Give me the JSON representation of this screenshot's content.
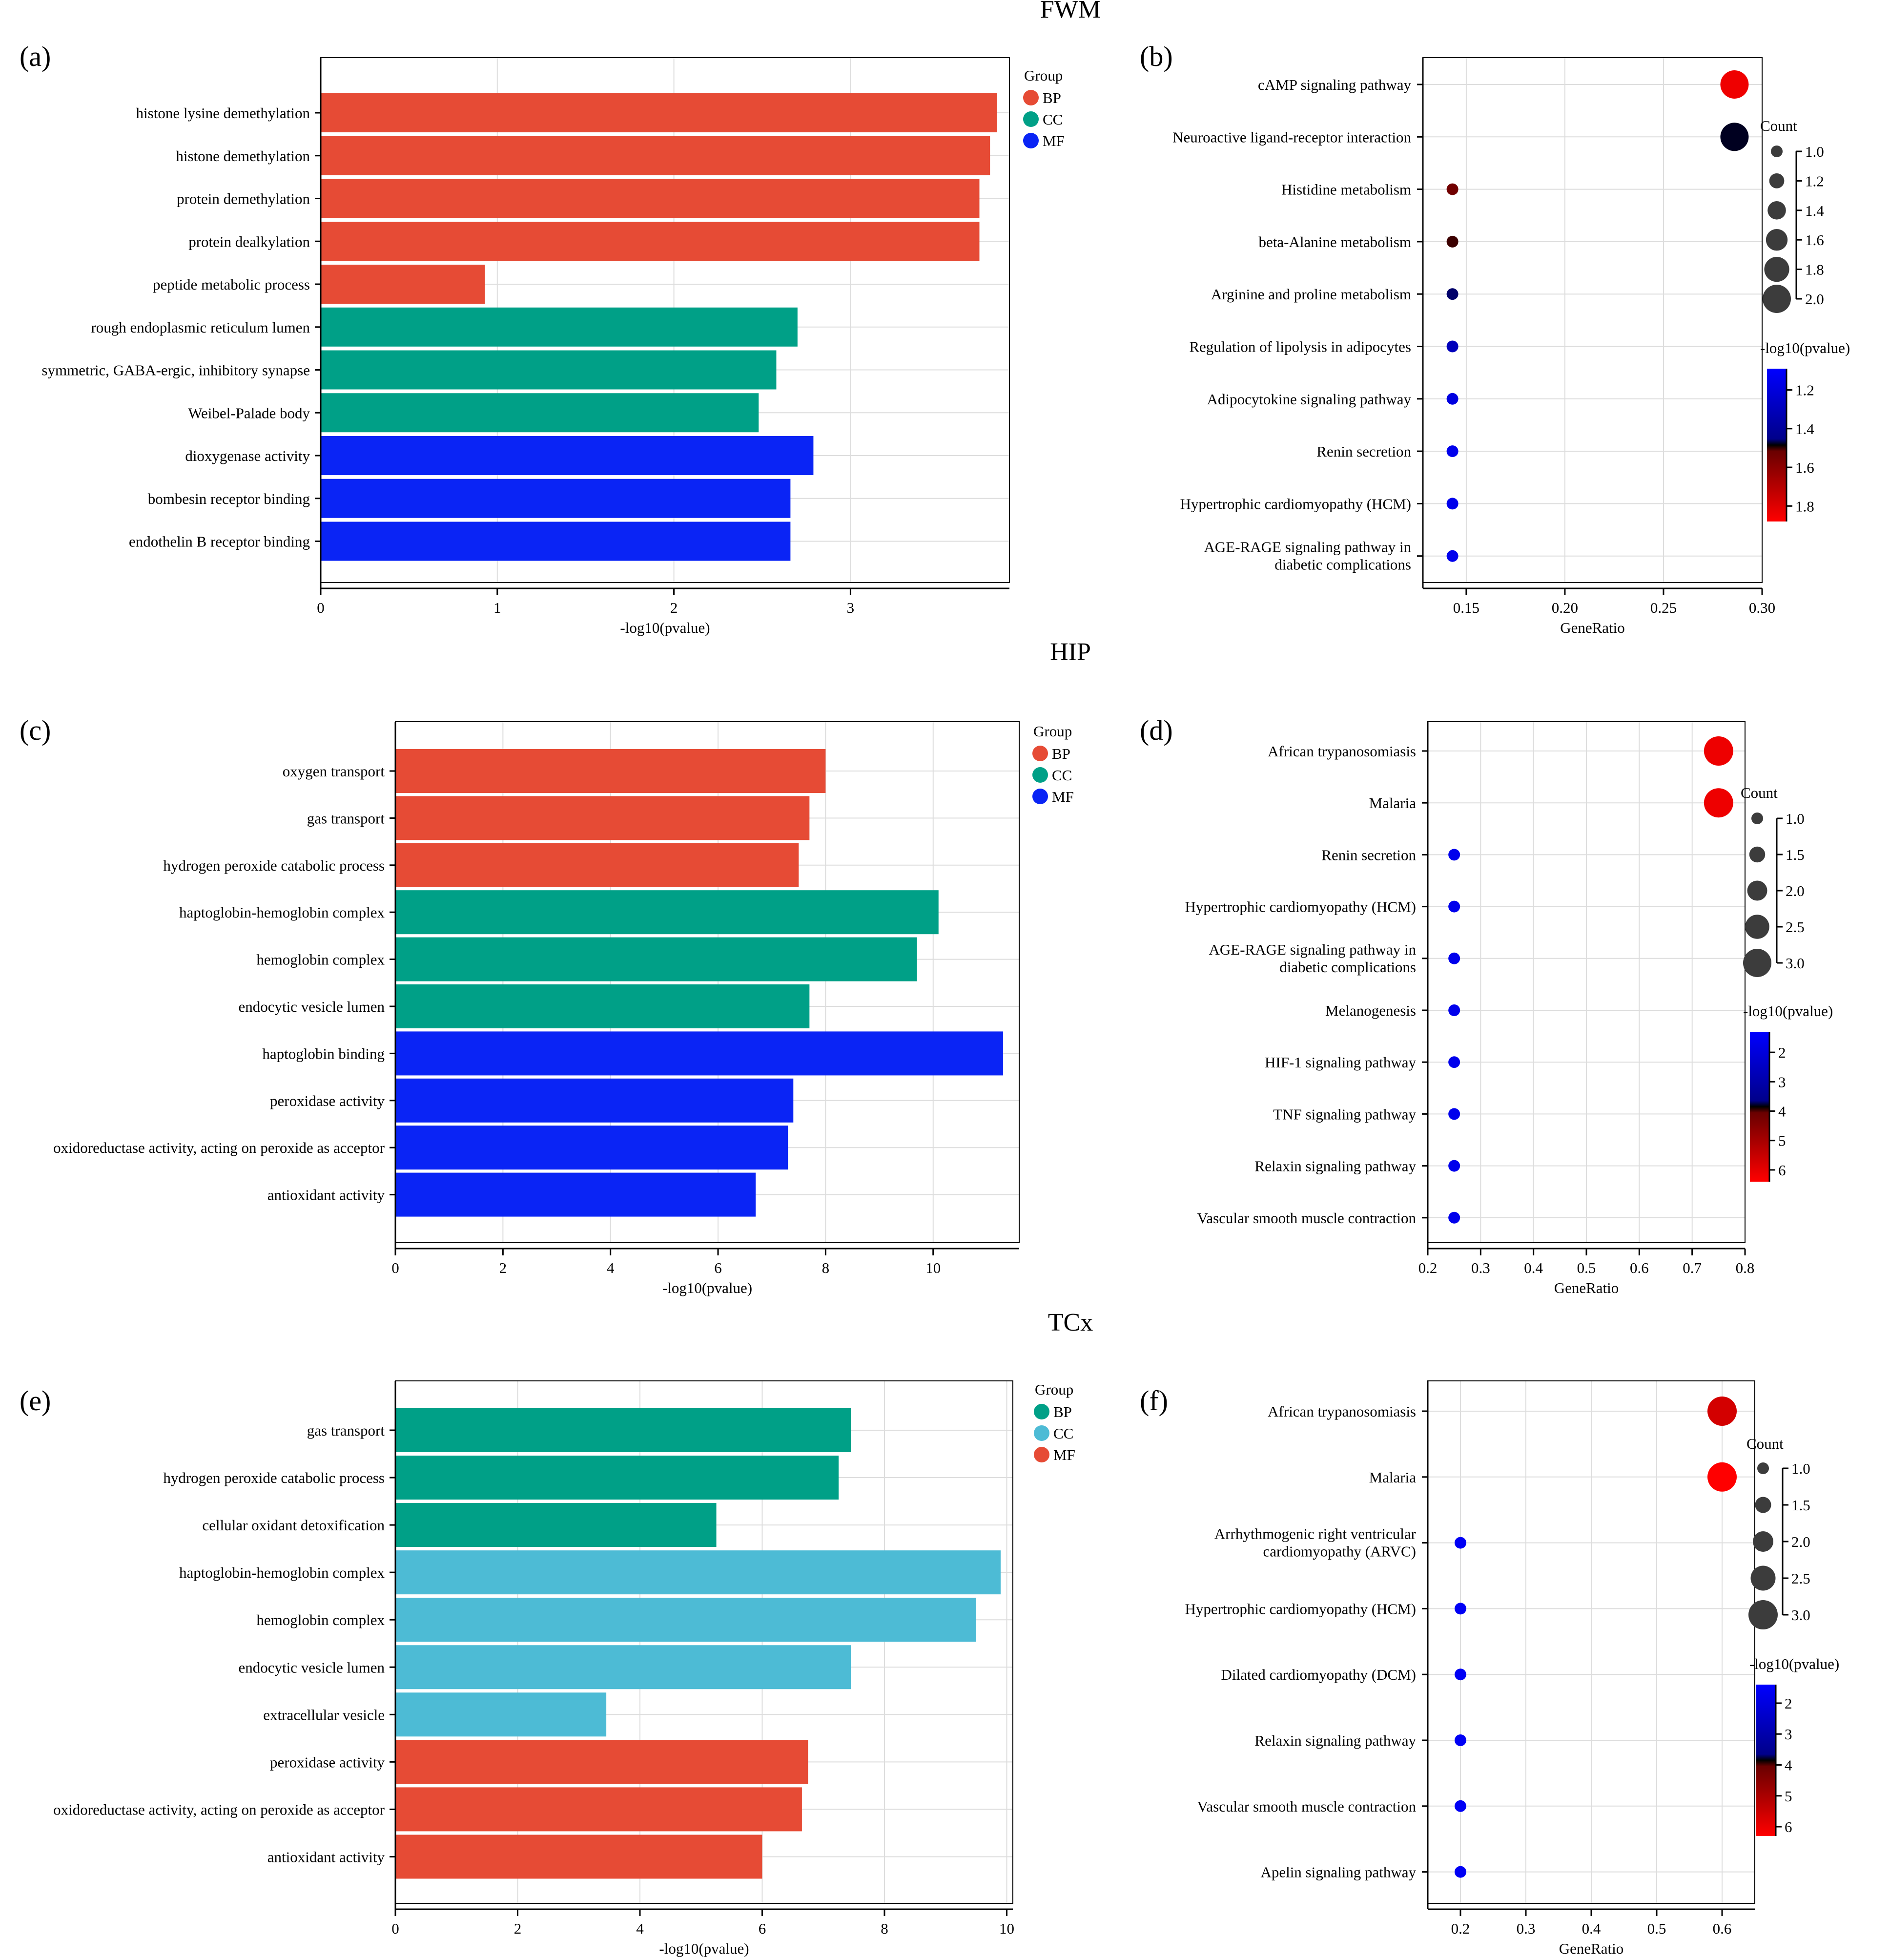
{
  "sections": [
    {
      "title": "FWM"
    },
    {
      "title": "HIP"
    },
    {
      "title": "TCx"
    }
  ],
  "chart_data": [
    {
      "panel": "(a)",
      "type": "bar",
      "orientation": "horizontal",
      "xlabel": "-log10(pvalue)",
      "xlim": [
        0,
        3.9
      ],
      "xticks": [
        "0",
        "1",
        "2",
        "3"
      ],
      "legend_title": "Group",
      "legend": [
        {
          "name": "BP",
          "color": "#e64b35"
        },
        {
          "name": "CC",
          "color": "#00a087"
        },
        {
          "name": "MF",
          "color": "#0a24f5"
        }
      ],
      "categories": [
        "histone lysine demethylation",
        "histone demethylation",
        "protein demethylation",
        "protein dealkylation",
        "peptide metabolic process",
        "rough endoplasmic reticulum lumen",
        "symmetric, GABA-ergic, inhibitory synapse",
        "Weibel-Palade body",
        "dioxygenase activity",
        "bombesin receptor binding",
        "endothelin B receptor binding"
      ],
      "groups": [
        "BP",
        "BP",
        "BP",
        "BP",
        "BP",
        "CC",
        "CC",
        "CC",
        "MF",
        "MF",
        "MF"
      ],
      "values": [
        3.83,
        3.79,
        3.73,
        3.73,
        0.93,
        2.7,
        2.58,
        2.48,
        2.79,
        2.66,
        2.66
      ]
    },
    {
      "panel": "(b)",
      "type": "scatter",
      "xlabel": "GeneRatio",
      "xlim": [
        0.128,
        0.3
      ],
      "xticks": [
        "0.15",
        "0.20",
        "0.25",
        "0.30"
      ],
      "categories": [
        "cAMP signaling pathway",
        "Neuroactive ligand-receptor interaction",
        "Histidine metabolism",
        "beta-Alanine metabolism",
        "Arginine and proline metabolism",
        "Regulation of lipolysis in adipocytes",
        "Adipocytokine signaling pathway",
        "Renin secretion",
        "Hypertrophic cardiomyopathy (HCM)",
        "AGE-RAGE signaling pathway in|diabetic complications"
      ],
      "x": [
        0.286,
        0.286,
        0.143,
        0.143,
        0.143,
        0.143,
        0.143,
        0.143,
        0.143,
        0.143
      ],
      "count": [
        2,
        2,
        1,
        1,
        1,
        1,
        1,
        1,
        1,
        1
      ],
      "color": [
        1.85,
        1.45,
        1.62,
        1.52,
        1.33,
        1.2,
        1.14,
        1.12,
        1.12,
        1.12
      ],
      "size_title": "Count",
      "size_range": [
        1.0,
        2.0
      ],
      "size_legend": [
        "1.0",
        "1.2",
        "1.4",
        "1.6",
        "1.8",
        "2.0"
      ],
      "color_title": "-log10(pvalue)",
      "color_range": [
        1.09,
        1.88
      ],
      "color_ticks": [
        "1.2",
        "1.4",
        "1.6",
        "1.8"
      ]
    },
    {
      "panel": "(c)",
      "type": "bar",
      "orientation": "horizontal",
      "xlabel": "-log10(pvalue)",
      "xlim": [
        0,
        11.6
      ],
      "xticks": [
        "0",
        "2",
        "4",
        "6",
        "8",
        "10"
      ],
      "legend_title": "Group",
      "legend": [
        {
          "name": "BP",
          "color": "#e64b35"
        },
        {
          "name": "CC",
          "color": "#00a087"
        },
        {
          "name": "MF",
          "color": "#0a24f5"
        }
      ],
      "categories": [
        "oxygen transport",
        "gas transport",
        "hydrogen peroxide catabolic process",
        "haptoglobin-hemoglobin complex",
        "hemoglobin complex",
        "endocytic vesicle lumen",
        "haptoglobin binding",
        "peroxidase activity",
        "oxidoreductase activity, acting on peroxide as acceptor",
        "antioxidant activity"
      ],
      "groups": [
        "BP",
        "BP",
        "BP",
        "CC",
        "CC",
        "CC",
        "MF",
        "MF",
        "MF",
        "MF"
      ],
      "values": [
        8.0,
        7.7,
        7.5,
        10.1,
        9.7,
        7.7,
        11.3,
        7.4,
        7.3,
        6.7
      ]
    },
    {
      "panel": "(d)",
      "type": "scatter",
      "xlabel": "GeneRatio",
      "xlim": [
        0.2,
        0.8
      ],
      "xticks": [
        "0.2",
        "0.3",
        "0.4",
        "0.5",
        "0.6",
        "0.7",
        "0.8"
      ],
      "categories": [
        "African trypanosomiasis",
        "Malaria",
        "Renin secretion",
        "Hypertrophic cardiomyopathy (HCM)",
        "AGE-RAGE signaling pathway in|diabetic complications",
        "Melanogenesis",
        "HIF-1 signaling pathway",
        "TNF signaling pathway",
        "Relaxin signaling pathway",
        "Vascular smooth muscle contraction"
      ],
      "x": [
        0.75,
        0.75,
        0.25,
        0.25,
        0.25,
        0.25,
        0.25,
        0.25,
        0.25,
        0.25
      ],
      "count": [
        3,
        3,
        1,
        1,
        1,
        1,
        1,
        1,
        1,
        1
      ],
      "color": [
        6.2,
        6.2,
        1.5,
        1.5,
        1.5,
        1.5,
        1.5,
        1.5,
        1.5,
        1.5
      ],
      "size_title": "Count",
      "size_range": [
        1.0,
        3.0
      ],
      "size_legend": [
        "1.0",
        "1.5",
        "2.0",
        "2.5",
        "3.0"
      ],
      "color_title": "-log10(pvalue)",
      "color_range": [
        1.3,
        6.4
      ],
      "color_ticks": [
        "2",
        "3",
        "4",
        "5",
        "6"
      ]
    },
    {
      "panel": "(e)",
      "type": "bar",
      "orientation": "horizontal",
      "xlabel": "-log10(pvalue)",
      "xlim": [
        0,
        10.1
      ],
      "xticks": [
        "0",
        "2",
        "4",
        "6",
        "8",
        "10"
      ],
      "legend_title": "Group",
      "legend": [
        {
          "name": "BP",
          "color": "#00a087"
        },
        {
          "name": "CC",
          "color": "#4dbbd5"
        },
        {
          "name": "MF",
          "color": "#e64b35"
        }
      ],
      "categories": [
        "gas transport",
        "hydrogen peroxide catabolic process",
        "cellular oxidant detoxification",
        "haptoglobin-hemoglobin complex",
        "hemoglobin complex",
        "endocytic vesicle lumen",
        "extracellular vesicle",
        "peroxidase activity",
        "oxidoreductase activity, acting on peroxide as acceptor",
        "antioxidant activity"
      ],
      "groups": [
        "BP",
        "BP",
        "BP",
        "CC",
        "CC",
        "CC",
        "CC",
        "MF",
        "MF",
        "MF"
      ],
      "values": [
        7.45,
        7.25,
        5.25,
        9.9,
        9.5,
        7.45,
        3.45,
        6.75,
        6.65,
        6.0
      ]
    },
    {
      "panel": "(f)",
      "type": "scatter",
      "xlabel": "GeneRatio",
      "xlim": [
        0.15,
        0.65
      ],
      "xticks": [
        "0.2",
        "0.3",
        "0.4",
        "0.5",
        "0.6"
      ],
      "categories": [
        "African trypanosomiasis",
        "Malaria",
        "Arrhythmogenic right ventricular|cardiomyopathy (ARVC)",
        "Hypertrophic cardiomyopathy (HCM)",
        "Dilated cardiomyopathy (DCM)",
        "Relaxin signaling pathway",
        "Vascular smooth muscle contraction",
        "Apelin signaling pathway"
      ],
      "x": [
        0.6,
        0.6,
        0.2,
        0.2,
        0.2,
        0.2,
        0.2,
        0.2
      ],
      "count": [
        3,
        3,
        1,
        1,
        1,
        1,
        1,
        1
      ],
      "color": [
        5.8,
        6.3,
        1.5,
        1.5,
        1.5,
        1.5,
        1.5,
        1.5
      ],
      "size_title": "Count",
      "size_range": [
        1.0,
        3.0
      ],
      "size_legend": [
        "1.0",
        "1.5",
        "2.0",
        "2.5",
        "3.0"
      ],
      "color_title": "-log10(pvalue)",
      "color_range": [
        1.4,
        6.3
      ],
      "color_ticks": [
        "2",
        "3",
        "4",
        "5",
        "6"
      ]
    }
  ]
}
